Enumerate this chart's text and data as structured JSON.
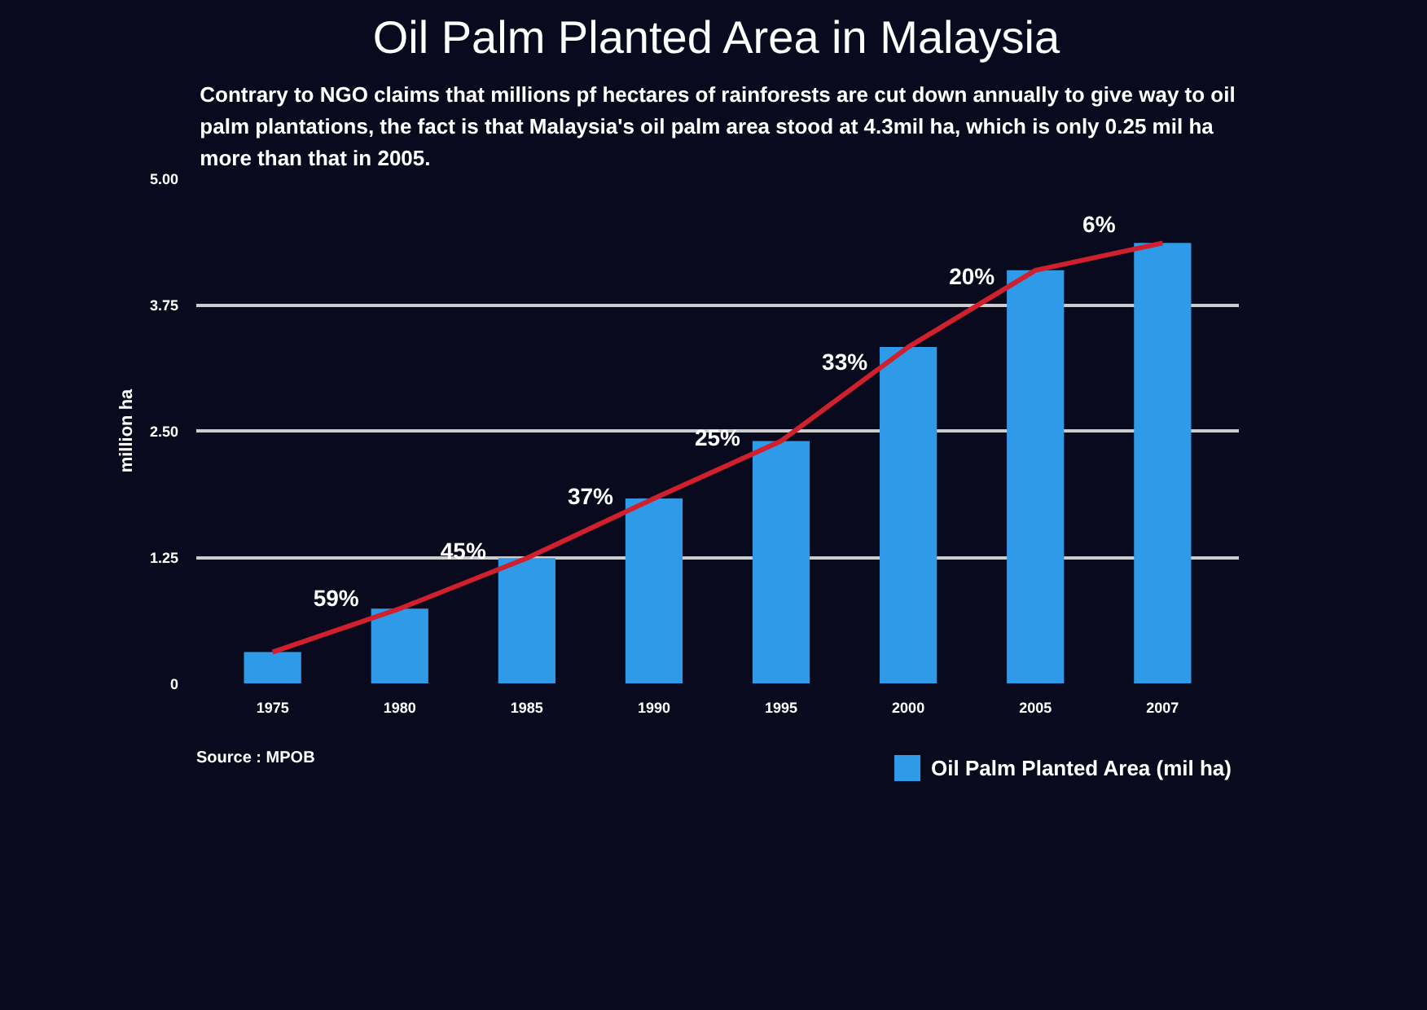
{
  "chart_data": {
    "type": "bar",
    "title": "Oil Palm Planted Area in Malaysia",
    "subtitle": "Contrary to NGO claims that millions pf hectares of rainforests are cut down annually to give way to oil palm plantations, the fact is that Malaysia's oil palm area stood at 4.3mil ha, which is only 0.25 mil ha more than that in 2005.",
    "ylabel": "million ha",
    "categories": [
      "1975",
      "1980",
      "1985",
      "1990",
      "1995",
      "2000",
      "2005",
      "2007"
    ],
    "series": [
      {
        "name": "Oil Palm Planted Area (mil ha)",
        "color": "#2f9be8",
        "values": [
          0.31,
          0.74,
          1.24,
          1.83,
          2.4,
          3.33,
          4.09,
          4.36
        ]
      },
      {
        "type": "line",
        "color": "#d0202e",
        "values": [
          0.31,
          0.74,
          1.24,
          1.83,
          2.4,
          3.33,
          4.09,
          4.36
        ]
      }
    ],
    "annotations": [
      "59%",
      "45%",
      "37%",
      "25%",
      "33%",
      "20%",
      "6%",
      "Source : MPOB"
    ],
    "ylim": [
      0,
      5
    ],
    "yticks": [
      {
        "value": 0,
        "label": "0"
      },
      {
        "value": 1.25,
        "label": "1.25"
      },
      {
        "value": 2.5,
        "label": "2.50"
      },
      {
        "value": 3.75,
        "label": "3.75"
      },
      {
        "value": 5,
        "label": "5.00"
      }
    ],
    "grid": "y",
    "legend": "bottom right"
  }
}
